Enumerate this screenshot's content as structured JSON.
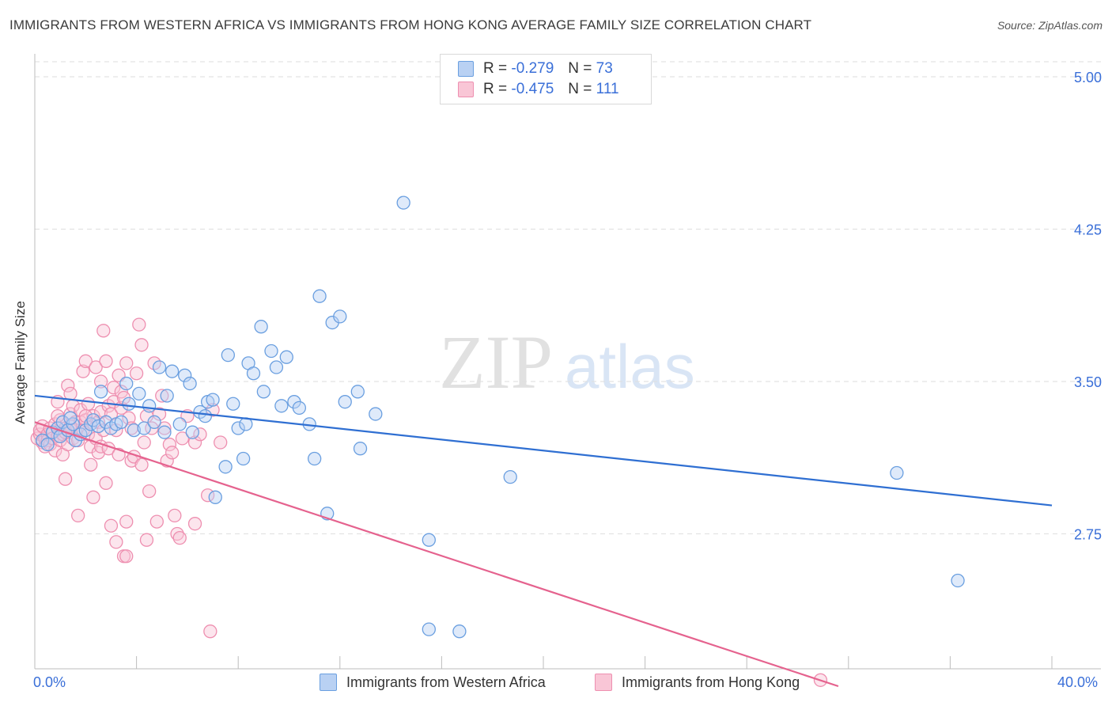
{
  "title": "IMMIGRANTS FROM WESTERN AFRICA VS IMMIGRANTS FROM HONG KONG AVERAGE FAMILY SIZE CORRELATION CHART",
  "source": "Source: ZipAtlas.com",
  "watermark": {
    "zip": "ZIP",
    "atlas": "atlas"
  },
  "legend": {
    "series1": {
      "r_label": "R =",
      "r_value": "-0.279",
      "n_label": "N =",
      "n_value": "73"
    },
    "series2": {
      "r_label": "R =",
      "r_value": "-0.475",
      "n_label": "N =",
      "n_value": "111"
    }
  },
  "colors": {
    "blue": "#6a9fe0",
    "blue_fill": "#b9d1f3",
    "blue_line": "#2f6fd2",
    "pink": "#ee8fb0",
    "pink_fill": "#f9c6d6",
    "pink_line": "#e5628e",
    "tick_text": "#3a6fd8"
  },
  "chart_data": {
    "type": "scatter",
    "title": "IMMIGRANTS FROM WESTERN AFRICA VS IMMIGRANTS FROM HONG KONG AVERAGE FAMILY SIZE CORRELATION CHART",
    "xlabel": "",
    "ylabel": "Average Family Size",
    "xlim": [
      0,
      40
    ],
    "ylim": [
      2.0,
      5.1
    ],
    "x_tick_labels": [
      "0.0%",
      "40.0%"
    ],
    "y_ticks": [
      5.0,
      4.25,
      3.5,
      2.75
    ],
    "y_tick_labels": [
      "5.00",
      "4.25",
      "3.50",
      "2.75"
    ],
    "series": [
      {
        "name": "Immigrants from Western Africa",
        "color": "blue",
        "r": -0.279,
        "n": 73,
        "trend": {
          "x": [
            0,
            40
          ],
          "y": [
            3.43,
            2.89
          ]
        },
        "points": [
          [
            0.3,
            3.21
          ],
          [
            0.5,
            3.19
          ],
          [
            0.7,
            3.25
          ],
          [
            0.9,
            3.27
          ],
          [
            1.0,
            3.23
          ],
          [
            1.1,
            3.3
          ],
          [
            1.3,
            3.26
          ],
          [
            1.5,
            3.29
          ],
          [
            1.6,
            3.21
          ],
          [
            1.8,
            3.24
          ],
          [
            2.0,
            3.26
          ],
          [
            2.2,
            3.29
          ],
          [
            2.3,
            3.31
          ],
          [
            2.5,
            3.28
          ],
          [
            2.6,
            3.45
          ],
          [
            2.8,
            3.3
          ],
          [
            3.0,
            3.27
          ],
          [
            3.2,
            3.29
          ],
          [
            3.4,
            3.3
          ],
          [
            3.6,
            3.49
          ],
          [
            3.7,
            3.39
          ],
          [
            3.9,
            3.26
          ],
          [
            4.1,
            3.44
          ],
          [
            4.3,
            3.27
          ],
          [
            4.5,
            3.38
          ],
          [
            4.7,
            3.3
          ],
          [
            4.9,
            3.57
          ],
          [
            5.1,
            3.25
          ],
          [
            5.2,
            3.43
          ],
          [
            5.4,
            3.55
          ],
          [
            5.7,
            3.29
          ],
          [
            5.9,
            3.53
          ],
          [
            6.1,
            3.49
          ],
          [
            6.2,
            3.25
          ],
          [
            6.5,
            3.35
          ],
          [
            6.7,
            3.33
          ],
          [
            6.8,
            3.4
          ],
          [
            7.0,
            3.41
          ],
          [
            7.1,
            2.93
          ],
          [
            7.5,
            3.08
          ],
          [
            7.6,
            3.63
          ],
          [
            7.8,
            3.39
          ],
          [
            8.0,
            3.27
          ],
          [
            8.2,
            3.12
          ],
          [
            8.3,
            3.29
          ],
          [
            8.4,
            3.59
          ],
          [
            8.6,
            3.54
          ],
          [
            8.9,
            3.77
          ],
          [
            9.0,
            3.45
          ],
          [
            9.3,
            3.65
          ],
          [
            9.5,
            3.57
          ],
          [
            9.7,
            3.38
          ],
          [
            9.9,
            3.62
          ],
          [
            10.2,
            3.4
          ],
          [
            10.4,
            3.37
          ],
          [
            10.8,
            3.29
          ],
          [
            11.2,
            3.92
          ],
          [
            11.0,
            3.12
          ],
          [
            11.5,
            2.85
          ],
          [
            11.7,
            3.79
          ],
          [
            12.0,
            3.82
          ],
          [
            12.2,
            3.4
          ],
          [
            12.7,
            3.45
          ],
          [
            12.8,
            3.17
          ],
          [
            13.4,
            3.34
          ],
          [
            14.5,
            4.38
          ],
          [
            15.5,
            2.72
          ],
          [
            15.5,
            2.28
          ],
          [
            16.7,
            2.27
          ],
          [
            18.7,
            3.03
          ],
          [
            33.9,
            3.05
          ],
          [
            36.3,
            2.52
          ],
          [
            1.4,
            3.32
          ]
        ]
      },
      {
        "name": "Immigrants from Hong Kong",
        "color": "pink",
        "r": -0.475,
        "n": 111,
        "trend": {
          "x": [
            0,
            31.6
          ],
          "y": [
            3.3,
            2.0
          ]
        },
        "points": [
          [
            0.1,
            3.22
          ],
          [
            0.2,
            3.24
          ],
          [
            0.2,
            3.26
          ],
          [
            0.3,
            3.2
          ],
          [
            0.3,
            3.28
          ],
          [
            0.4,
            3.22
          ],
          [
            0.4,
            3.18
          ],
          [
            0.5,
            3.24
          ],
          [
            0.5,
            3.21
          ],
          [
            0.6,
            3.27
          ],
          [
            0.6,
            3.19
          ],
          [
            0.7,
            3.25
          ],
          [
            0.7,
            3.22
          ],
          [
            0.8,
            3.29
          ],
          [
            0.8,
            3.16
          ],
          [
            0.9,
            3.23
          ],
          [
            0.9,
            3.4
          ],
          [
            1.0,
            3.21
          ],
          [
            1.0,
            3.31
          ],
          [
            1.1,
            3.24
          ],
          [
            1.1,
            3.14
          ],
          [
            1.2,
            3.02
          ],
          [
            1.2,
            3.27
          ],
          [
            1.3,
            3.48
          ],
          [
            1.3,
            3.19
          ],
          [
            1.4,
            3.34
          ],
          [
            1.4,
            3.44
          ],
          [
            1.5,
            3.22
          ],
          [
            1.5,
            3.38
          ],
          [
            1.6,
            3.3
          ],
          [
            1.6,
            3.26
          ],
          [
            1.7,
            2.84
          ],
          [
            1.7,
            3.21
          ],
          [
            1.8,
            3.36
          ],
          [
            1.8,
            3.3
          ],
          [
            1.9,
            3.55
          ],
          [
            1.9,
            3.26
          ],
          [
            2.0,
            3.6
          ],
          [
            2.0,
            3.31
          ],
          [
            2.1,
            3.24
          ],
          [
            2.1,
            3.39
          ],
          [
            2.2,
            3.18
          ],
          [
            2.2,
            3.09
          ],
          [
            2.3,
            2.93
          ],
          [
            2.3,
            3.33
          ],
          [
            2.4,
            3.57
          ],
          [
            2.4,
            3.22
          ],
          [
            2.5,
            3.15
          ],
          [
            2.5,
            3.3
          ],
          [
            2.6,
            3.35
          ],
          [
            2.6,
            3.18
          ],
          [
            2.7,
            3.75
          ],
          [
            2.7,
            3.26
          ],
          [
            2.8,
            3.6
          ],
          [
            2.8,
            3.0
          ],
          [
            2.9,
            3.38
          ],
          [
            2.9,
            3.17
          ],
          [
            3.0,
            3.34
          ],
          [
            3.0,
            2.79
          ],
          [
            3.1,
            3.47
          ],
          [
            3.1,
            3.4
          ],
          [
            3.2,
            2.71
          ],
          [
            3.2,
            3.26
          ],
          [
            3.3,
            3.53
          ],
          [
            3.3,
            3.14
          ],
          [
            3.4,
            3.45
          ],
          [
            3.4,
            3.37
          ],
          [
            3.5,
            3.42
          ],
          [
            3.5,
            2.64
          ],
          [
            3.6,
            2.64
          ],
          [
            3.6,
            3.59
          ],
          [
            3.7,
            3.32
          ],
          [
            3.8,
            3.11
          ],
          [
            3.8,
            3.27
          ],
          [
            3.9,
            3.13
          ],
          [
            4.0,
            3.54
          ],
          [
            4.1,
            3.78
          ],
          [
            4.2,
            3.68
          ],
          [
            4.2,
            3.09
          ],
          [
            4.3,
            3.2
          ],
          [
            4.4,
            3.33
          ],
          [
            4.5,
            2.96
          ],
          [
            4.6,
            3.27
          ],
          [
            4.7,
            3.59
          ],
          [
            4.8,
            2.81
          ],
          [
            4.9,
            3.34
          ],
          [
            5.0,
            3.43
          ],
          [
            5.1,
            3.27
          ],
          [
            5.2,
            3.11
          ],
          [
            5.3,
            3.19
          ],
          [
            5.4,
            3.15
          ],
          [
            5.5,
            2.84
          ],
          [
            5.6,
            2.75
          ],
          [
            5.7,
            2.73
          ],
          [
            5.8,
            3.22
          ],
          [
            6.0,
            3.33
          ],
          [
            6.3,
            2.8
          ],
          [
            6.3,
            3.2
          ],
          [
            6.5,
            3.24
          ],
          [
            6.8,
            2.94
          ],
          [
            6.9,
            2.27
          ],
          [
            7.0,
            3.36
          ],
          [
            7.3,
            3.2
          ],
          [
            2.0,
            3.33
          ],
          [
            1.4,
            3.28
          ],
          [
            0.9,
            3.33
          ],
          [
            1.2,
            3.25
          ],
          [
            3.6,
            2.81
          ],
          [
            4.4,
            2.72
          ],
          [
            30.9,
            2.03
          ],
          [
            2.6,
            3.5
          ]
        ]
      }
    ]
  },
  "bottom_legend": {
    "series1": "Immigrants from Western Africa",
    "series2": "Immigrants from Hong Kong"
  }
}
